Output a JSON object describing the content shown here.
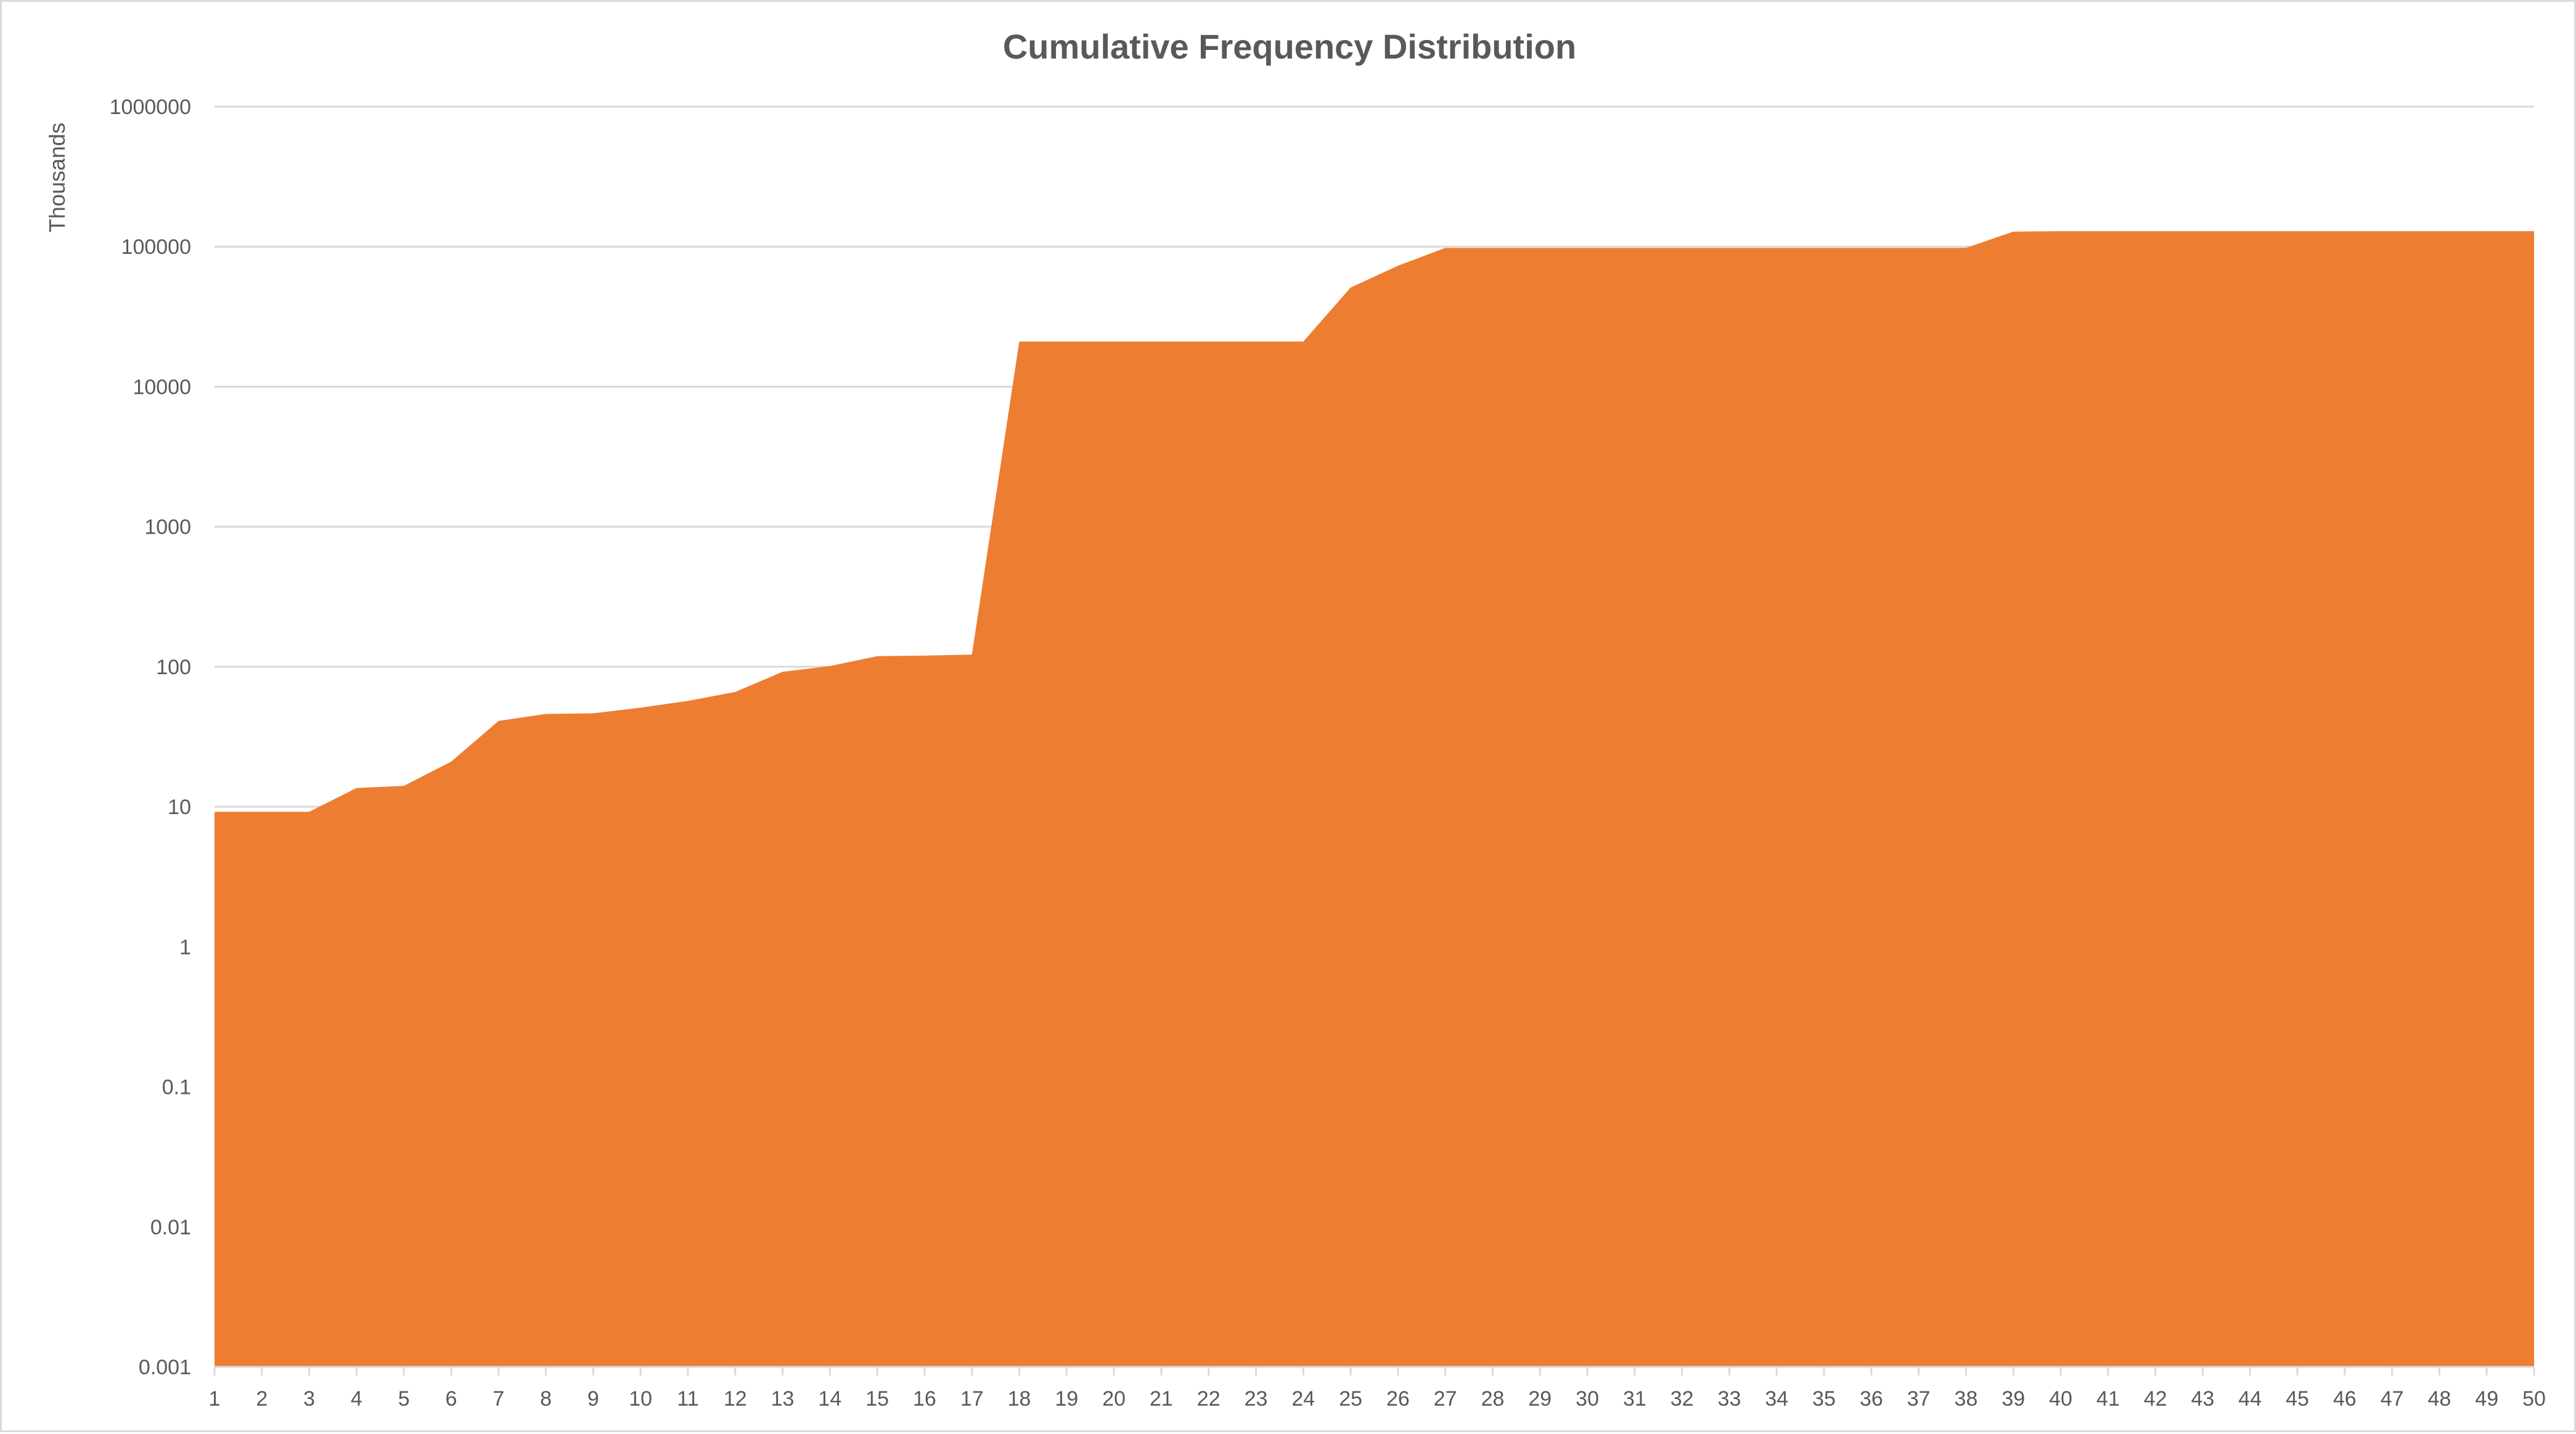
{
  "chart_data": {
    "type": "area",
    "title": "Cumulative Frequency Distribution",
    "ylabel": "Thousands",
    "xlabel": "",
    "y_scale": "log",
    "ylim": [
      0.001,
      1000000
    ],
    "y_ticks": [
      "0.001",
      "0.01",
      "0.1",
      "1",
      "10",
      "100",
      "1000",
      "10000",
      "100000",
      "1000000"
    ],
    "grid": true,
    "legend": "none",
    "color": "#ED7D31",
    "x": [
      1,
      2,
      3,
      4,
      5,
      6,
      7,
      8,
      9,
      10,
      11,
      12,
      13,
      14,
      15,
      16,
      17,
      18,
      19,
      20,
      21,
      22,
      23,
      24,
      25,
      26,
      27,
      28,
      29,
      30,
      31,
      32,
      33,
      34,
      35,
      36,
      37,
      38,
      39,
      40,
      41,
      42,
      43,
      44,
      45,
      46,
      47,
      48,
      49,
      50
    ],
    "values": [
      9.2,
      9.2,
      9.2,
      13.6,
      14.1,
      21,
      41,
      46,
      46.5,
      51,
      57,
      66,
      92,
      101,
      119,
      120,
      122,
      21000,
      21000,
      21000,
      21000,
      21000,
      21000,
      21000,
      51000,
      73000,
      98000,
      98000,
      98000,
      98000,
      98000,
      98000,
      98000,
      98000,
      98000,
      98000,
      98000,
      98000,
      128000,
      129000,
      129000,
      129000,
      129000,
      129000,
      129000,
      129000,
      129000,
      129000,
      129000,
      129000
    ]
  }
}
